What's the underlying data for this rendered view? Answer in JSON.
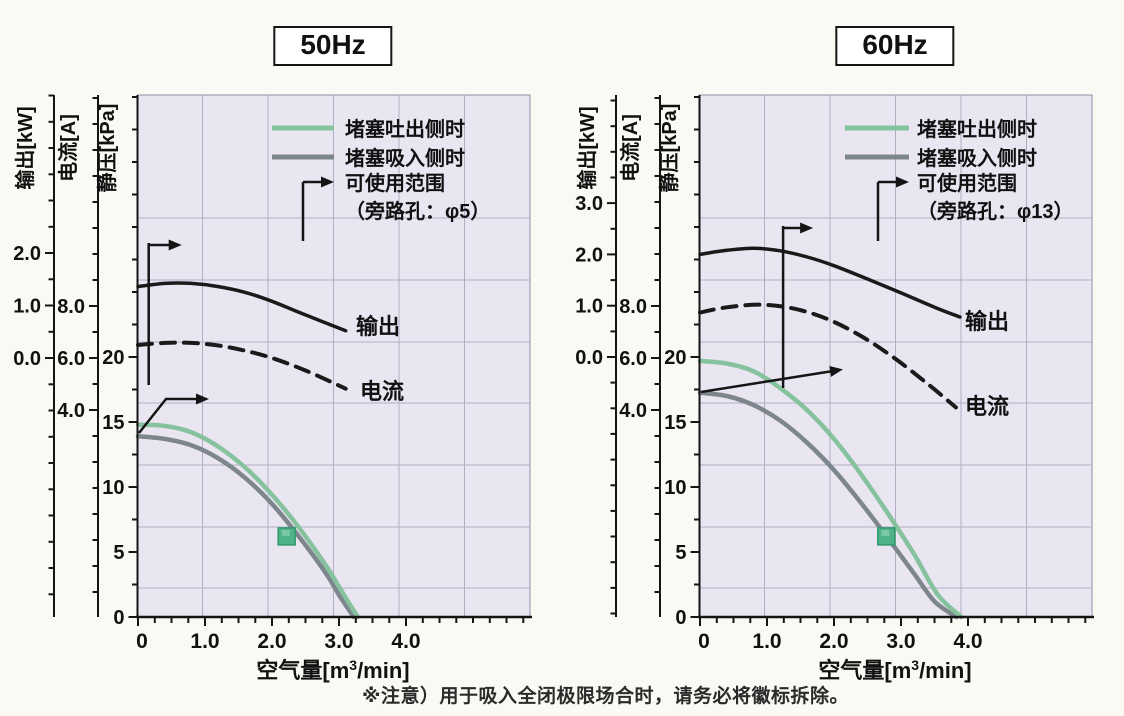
{
  "page": {
    "note": "※注意）用于吸入全闭极限场合时，请务必将徽标拆除。"
  },
  "colors": {
    "page_bg": "#fbf9f3",
    "plot_bg": "#e9e6f2",
    "grid": "#b2adc4",
    "plot_border": "#938da6",
    "axis": "#151515",
    "output_curve": "#1a1a1a",
    "current_curve": "#1a1a1a",
    "discharge_green": "#87c29e",
    "suction_gray": "#7e868d",
    "marker_fill": "#4fb289",
    "marker_inner": "#85cdab",
    "marker_border": "#2f9a6d"
  },
  "chart_data": [
    {
      "type": "line",
      "title": "50Hz",
      "x_axis": {
        "label": "空气量[m³/min]",
        "label_parts": {
          "pre": "空气量[m",
          "sup": "3",
          "post": "/min]"
        },
        "tick_values": [
          0,
          1,
          2,
          3,
          4
        ],
        "tick_labels": [
          "0",
          "1.0",
          "2.0",
          "3.0",
          "4.0"
        ],
        "minor_step": 0.25,
        "range": [
          0,
          5.85
        ]
      },
      "y_axes": [
        {
          "name": "output",
          "title": "输出[kW]",
          "unit": "kW",
          "tick_values": [
            2.0,
            1.0,
            0.0
          ],
          "tick_labels": [
            "2.0",
            "1.0",
            "0.0"
          ],
          "minor_step": 0.5
        },
        {
          "name": "current",
          "title": "电流[A]",
          "unit": "A",
          "tick_values": [
            8.0,
            6.0,
            4.0
          ],
          "tick_labels": [
            "8.0",
            "6.0",
            "4.0"
          ],
          "minor_step": 1
        },
        {
          "name": "static_pressure",
          "title": "静压[kPa]",
          "unit": "kPa",
          "tick_values": [
            20,
            15,
            10,
            5,
            0
          ],
          "tick_labels": [
            "20",
            "15",
            "10",
            "5",
            "0"
          ],
          "minor_step": 2.5
        }
      ],
      "series": [
        {
          "name": "output",
          "label": "输出",
          "axis": "output",
          "line": "solid",
          "color": "#1a1a1a",
          "points": [
            [
              0,
              1.36
            ],
            [
              0.4,
              1.42
            ],
            [
              0.8,
              1.42
            ],
            [
              1.2,
              1.36
            ],
            [
              1.6,
              1.25
            ],
            [
              2.0,
              1.08
            ],
            [
              2.5,
              0.82
            ],
            [
              3.1,
              0.52
            ]
          ]
        },
        {
          "name": "current",
          "label": "电流",
          "axis": "current",
          "line": "dashed",
          "color": "#1a1a1a",
          "points": [
            [
              0,
              6.5
            ],
            [
              0.4,
              6.58
            ],
            [
              0.8,
              6.58
            ],
            [
              1.2,
              6.48
            ],
            [
              1.6,
              6.28
            ],
            [
              2.0,
              6.0
            ],
            [
              2.5,
              5.52
            ],
            [
              3.1,
              4.82
            ]
          ]
        },
        {
          "name": "discharge_blocked",
          "label": "堵塞吐出侧时",
          "axis": "static_pressure",
          "line": "solid",
          "color": "#87c29e",
          "points": [
            [
              0,
              14.8
            ],
            [
              0.4,
              14.7
            ],
            [
              0.8,
              14.2
            ],
            [
              1.2,
              13.1
            ],
            [
              1.6,
              11.5
            ],
            [
              2.0,
              9.4
            ],
            [
              2.4,
              6.9
            ],
            [
              2.8,
              4.0
            ],
            [
              3.05,
              1.9
            ],
            [
              3.28,
              0
            ]
          ]
        },
        {
          "name": "suction_blocked",
          "label": "堵塞吸入侧时",
          "axis": "static_pressure",
          "line": "solid",
          "color": "#7e868d",
          "points": [
            [
              0,
              13.9
            ],
            [
              0.4,
              13.7
            ],
            [
              0.8,
              13.2
            ],
            [
              1.2,
              12.2
            ],
            [
              1.6,
              10.7
            ],
            [
              2.0,
              8.7
            ],
            [
              2.4,
              6.2
            ],
            [
              2.8,
              3.4
            ],
            [
              3.0,
              1.7
            ],
            [
              3.22,
              0
            ]
          ]
        }
      ],
      "legend": [
        {
          "label": "堵塞吐出侧时",
          "swatch": "green-line"
        },
        {
          "label": "堵塞吸入侧时",
          "swatch": "gray-line"
        },
        {
          "label": "可使用范围",
          "swatch": "arrow"
        },
        {
          "label": "（旁路孔：φ5）",
          "swatch": "none"
        }
      ],
      "usable_range_from_x": 0.16,
      "operating_point": {
        "x": 2.22,
        "kPa": 6.2
      }
    },
    {
      "type": "line",
      "title": "60Hz",
      "x_axis": {
        "label": "空气量[m³/min]",
        "label_parts": {
          "pre": "空气量[m",
          "sup": "3",
          "post": "/min]"
        },
        "tick_values": [
          0,
          1,
          2,
          3,
          4
        ],
        "tick_labels": [
          "0",
          "1.0",
          "2.0",
          "3.0",
          "4.0"
        ],
        "minor_step": 0.25,
        "range": [
          0,
          5.85
        ]
      },
      "y_axes": [
        {
          "name": "output",
          "title": "输出[kW]",
          "unit": "kW",
          "tick_values": [
            3.0,
            2.0,
            1.0,
            0.0
          ],
          "tick_labels": [
            "3.0",
            "2.0",
            "1.0",
            "0.0"
          ],
          "minor_step": 0.5
        },
        {
          "name": "current",
          "title": "电流[A]",
          "unit": "A",
          "tick_values": [
            8.0,
            6.0,
            4.0
          ],
          "tick_labels": [
            "8.0",
            "6.0",
            "4.0"
          ],
          "minor_step": 1
        },
        {
          "name": "static_pressure",
          "title": "静压[kPa]",
          "unit": "kPa",
          "tick_values": [
            20,
            15,
            10,
            5,
            0
          ],
          "tick_labels": [
            "20",
            "15",
            "10",
            "5",
            "0"
          ],
          "minor_step": 2.5
        }
      ],
      "series": [
        {
          "name": "output",
          "label": "输出",
          "axis": "output",
          "line": "solid",
          "color": "#1a1a1a",
          "points": [
            [
              0,
              2.0
            ],
            [
              0.4,
              2.08
            ],
            [
              0.8,
              2.12
            ],
            [
              1.2,
              2.07
            ],
            [
              1.6,
              1.95
            ],
            [
              2.0,
              1.78
            ],
            [
              2.5,
              1.52
            ],
            [
              3.0,
              1.25
            ],
            [
              3.5,
              0.97
            ],
            [
              3.88,
              0.78
            ]
          ]
        },
        {
          "name": "current",
          "label": "电流",
          "axis": "current",
          "line": "dashed",
          "color": "#1a1a1a",
          "points": [
            [
              0,
              7.75
            ],
            [
              0.4,
              7.95
            ],
            [
              0.9,
              8.05
            ],
            [
              1.4,
              7.9
            ],
            [
              1.9,
              7.5
            ],
            [
              2.4,
              6.85
            ],
            [
              2.9,
              6.0
            ],
            [
              3.4,
              5.0
            ],
            [
              3.82,
              4.1
            ]
          ]
        },
        {
          "name": "discharge_blocked",
          "label": "堵塞吐出侧时",
          "axis": "static_pressure",
          "line": "solid",
          "color": "#87c29e",
          "points": [
            [
              0,
              19.7
            ],
            [
              0.4,
              19.5
            ],
            [
              0.8,
              18.9
            ],
            [
              1.2,
              17.6
            ],
            [
              1.6,
              15.9
            ],
            [
              2.0,
              13.7
            ],
            [
              2.4,
              11.0
            ],
            [
              2.8,
              8.0
            ],
            [
              3.2,
              4.8
            ],
            [
              3.55,
              1.7
            ],
            [
              3.9,
              0
            ]
          ]
        },
        {
          "name": "suction_blocked",
          "label": "堵塞吸入侧时",
          "axis": "static_pressure",
          "line": "solid",
          "color": "#7e868d",
          "points": [
            [
              0,
              17.25
            ],
            [
              0.4,
              17.0
            ],
            [
              0.8,
              16.3
            ],
            [
              1.2,
              15.1
            ],
            [
              1.6,
              13.4
            ],
            [
              2.0,
              11.3
            ],
            [
              2.4,
              8.8
            ],
            [
              2.8,
              6.1
            ],
            [
              3.2,
              3.3
            ],
            [
              3.5,
              1.2
            ],
            [
              3.83,
              0
            ]
          ]
        }
      ],
      "legend": [
        {
          "label": "堵塞吐出侧时",
          "swatch": "green-line"
        },
        {
          "label": "堵塞吸入侧时",
          "swatch": "gray-line"
        },
        {
          "label": "可使用范围",
          "swatch": "arrow"
        },
        {
          "label": "（旁路孔：φ13）",
          "swatch": "none"
        }
      ],
      "usable_range_from_x": 1.24,
      "operating_point": {
        "x": 2.78,
        "kPa": 6.2
      }
    }
  ]
}
